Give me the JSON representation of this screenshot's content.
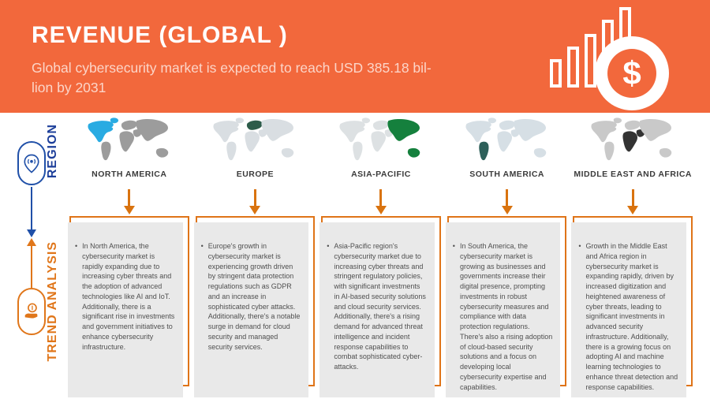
{
  "header": {
    "title": "REVENUE (GLOBAL )",
    "subtitle_line1": "Global cybersecurity market is expected to reach USD 385.18 bil-",
    "subtitle_line2": "lion by 2031",
    "coin_symbol": "$",
    "banner_color": "#f2683c"
  },
  "rails": {
    "region_label": "REGION",
    "trend_label": "TREND ANALYSIS"
  },
  "colors": {
    "arrow_orange": "#d9730f",
    "frame_orange": "#df7418",
    "rail_blue": "#2050a8",
    "panel_gray": "#e9e9e9"
  },
  "bullet_glyph": "•",
  "regions": [
    {
      "name": "NORTH AMERICA",
      "trend": "In North America, the cybersecurity market is rapidly expanding due to increasing cyber threats and the adoption of advanced technologies like AI and IoT. Additionally, there is a significant rise in investments and government initiatives to enhance cybersecurity infrastructure.",
      "map": {
        "highlighted": [
          "na",
          "gl"
        ],
        "highlight_color": "#29abe2",
        "base_color": "#9c9c9c"
      }
    },
    {
      "name": "EUROPE",
      "trend": "Europe's growth in cybersecurity market is experiencing growth driven by stringent data protection regulations such as GDPR and an increase in sophisticated cyber attacks. Additionally, there's a notable surge in demand for cloud security and managed security services.",
      "map": {
        "highlighted": [
          "eu"
        ],
        "highlight_color": "#2d5c4a",
        "base_color": "#d9dee2"
      }
    },
    {
      "name": "ASIA-PACIFIC",
      "trend": "Asia-Pacific region's cybersecurity market due to increasing cyber threats and stringent regulatory policies, with significant investments in AI-based security solutions and cloud security services. Additionally, there's a rising demand for advanced threat intelligence and incident response capabilities to combat sophisticated cyber-attacks.",
      "map": {
        "highlighted": [
          "as",
          "au"
        ],
        "highlight_color": "#15803d",
        "base_color": "#dde1e3"
      }
    },
    {
      "name": "SOUTH AMERICA",
      "trend": "In South America, the cybersecurity market is growing as businesses and governments increase their digital presence, prompting investments in robust cybersecurity measures and compliance with data protection regulations. There's also a rising adoption of cloud-based security solutions and a focus on developing local cybersecurity expertise and capabilities.",
      "map": {
        "highlighted": [
          "sa"
        ],
        "highlight_color": "#2e605a",
        "base_color": "#d6dfe5"
      }
    },
    {
      "name": "MIDDLE EAST AND AFRICA",
      "trend": "Growth in the Middle East and Africa region in cybersecurity market is expanding rapidly, driven by increased digitization and heightened awareness of cyber threats, leading to significant investments in advanced security infrastructure. Additionally, there is a growing focus on adopting AI and machine learning technologies to enhance threat detection and response capabilities.",
      "map": {
        "highlighted": [
          "af",
          "me"
        ],
        "highlight_color": "#333333",
        "base_color": "#c9c9c9"
      }
    }
  ]
}
